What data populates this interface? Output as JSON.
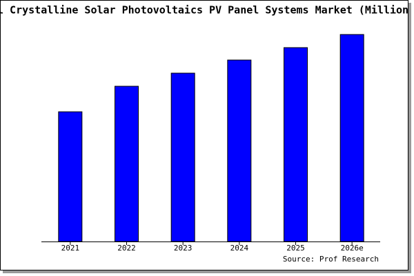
{
  "chart_data": {
    "type": "bar",
    "title": "l Crystalline Solar Photovoltaics PV Panel Systems Market (Million",
    "categories": [
      "2021",
      "2022",
      "2023",
      "2024",
      "2025",
      "2026e"
    ],
    "values": [
      188,
      225,
      244,
      263,
      281,
      300
    ],
    "color": "#0000ff",
    "source": "Source: Prof Research"
  }
}
